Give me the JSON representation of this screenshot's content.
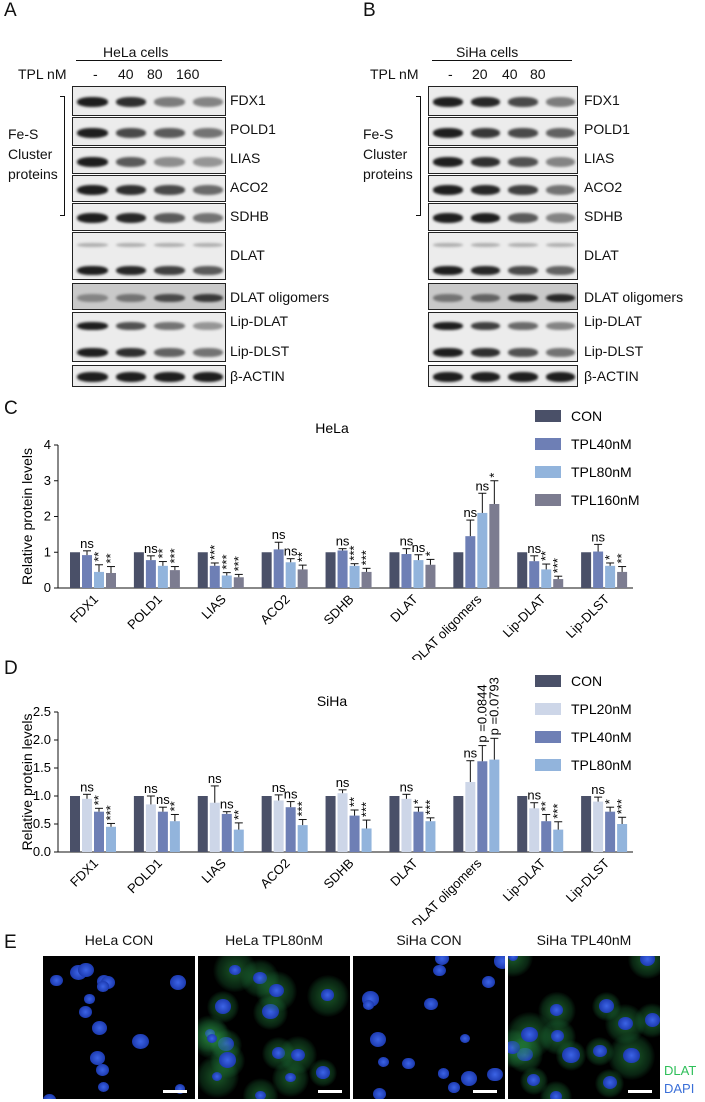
{
  "panelA": {
    "letter": "A",
    "cell_header": "HeLa cells",
    "tpl_label": "TPL nM",
    "doses": [
      "-",
      "40",
      "80",
      "160"
    ],
    "bracket_label": [
      "Fe-S",
      "Cluster",
      "proteins"
    ],
    "blots": [
      {
        "name": "FDX1",
        "levels": [
          1.0,
          0.9,
          0.45,
          0.4
        ]
      },
      {
        "name": "POLD1",
        "levels": [
          1.0,
          0.75,
          0.65,
          0.5
        ]
      },
      {
        "name": "LIAS",
        "levels": [
          1.0,
          0.65,
          0.35,
          0.3
        ]
      },
      {
        "name": "ACO2",
        "levels": [
          1.0,
          0.9,
          0.75,
          0.55
        ]
      },
      {
        "name": "SDHB",
        "levels": [
          1.0,
          0.95,
          0.65,
          0.5
        ]
      },
      {
        "name": "DLAT",
        "levels": [
          1.0,
          0.95,
          0.8,
          0.65
        ]
      },
      {
        "name": "DLAT oligomers",
        "levels": [
          0.4,
          0.5,
          0.75,
          0.85
        ]
      },
      {
        "name": "Lip-DLAT",
        "levels": [
          1.0,
          0.7,
          0.5,
          0.3
        ]
      },
      {
        "name": "Lip-DLST",
        "levels": [
          1.0,
          0.9,
          0.6,
          0.5
        ]
      },
      {
        "name": "β-ACTIN",
        "levels": [
          1.0,
          1.0,
          1.0,
          1.0
        ]
      }
    ]
  },
  "panelB": {
    "letter": "B",
    "cell_header": "SiHa cells",
    "tpl_label": "TPL nM",
    "doses": [
      "-",
      "20",
      "40",
      "80"
    ],
    "bracket_label": [
      "Fe-S",
      "Cluster",
      "proteins"
    ],
    "blots": [
      {
        "name": "FDX1",
        "levels": [
          1.0,
          0.95,
          0.75,
          0.45
        ]
      },
      {
        "name": "POLD1",
        "levels": [
          1.0,
          0.85,
          0.75,
          0.6
        ]
      },
      {
        "name": "LIAS",
        "levels": [
          1.0,
          0.9,
          0.7,
          0.4
        ]
      },
      {
        "name": "ACO2",
        "levels": [
          1.0,
          0.95,
          0.8,
          0.5
        ]
      },
      {
        "name": "SDHB",
        "levels": [
          1.0,
          1.0,
          0.65,
          0.4
        ]
      },
      {
        "name": "DLAT",
        "levels": [
          1.0,
          0.95,
          0.75,
          0.6
        ]
      },
      {
        "name": "DLAT oligomers",
        "levels": [
          0.5,
          0.6,
          0.9,
          0.95
        ]
      },
      {
        "name": "Lip-DLAT",
        "levels": [
          1.0,
          0.8,
          0.55,
          0.4
        ]
      },
      {
        "name": "Lip-DLST",
        "levels": [
          1.0,
          0.9,
          0.7,
          0.5
        ]
      },
      {
        "name": "β-ACTIN",
        "levels": [
          1.0,
          1.0,
          1.0,
          1.0
        ]
      }
    ]
  },
  "chart_data": [
    {
      "type": "bar",
      "letter": "C",
      "title": "HeLa",
      "ylabel": "Relative protein levels",
      "ylim": [
        0,
        4
      ],
      "yticks": [
        "0",
        "1",
        "2",
        "3",
        "4"
      ],
      "categories": [
        "FDX1",
        "POLD1",
        "LIAS",
        "ACO2",
        "SDHB",
        "DLAT",
        "DLAT oligomers",
        "Lip-DLAT",
        "Lip-DLST"
      ],
      "series": [
        {
          "name": "CON",
          "color": "#4a5068",
          "values": [
            1,
            1,
            1,
            1,
            1,
            1,
            1,
            1,
            1
          ],
          "errors": [
            0,
            0,
            0,
            0,
            0,
            0,
            0,
            0,
            0
          ],
          "sig": [
            "",
            "",
            "",
            "",
            "",
            "",
            "",
            "",
            ""
          ]
        },
        {
          "name": "TPL40nM",
          "color": "#6e7fb5",
          "values": [
            0.92,
            0.78,
            0.62,
            1.08,
            1.05,
            0.95,
            1.45,
            0.75,
            1.02
          ],
          "errors": [
            0.12,
            0.12,
            0.08,
            0.2,
            0.05,
            0.15,
            0.45,
            0.15,
            0.2
          ],
          "sig": [
            "ns",
            "ns",
            "***",
            "ns",
            "ns",
            "ns",
            "ns",
            "ns",
            "ns"
          ]
        },
        {
          "name": "TPL80nM",
          "color": "#92b4dc",
          "values": [
            0.45,
            0.62,
            0.35,
            0.72,
            0.62,
            0.78,
            2.1,
            0.52,
            0.62
          ],
          "errors": [
            0.2,
            0.12,
            0.08,
            0.1,
            0.06,
            0.15,
            0.55,
            0.15,
            0.08
          ],
          "sig": [
            "**",
            "**",
            "***",
            "ns",
            "***",
            "ns",
            "ns",
            "**",
            "*"
          ]
        },
        {
          "name": "TPL160nM",
          "color": "#7c7c90",
          "values": [
            0.42,
            0.5,
            0.3,
            0.52,
            0.45,
            0.65,
            2.35,
            0.25,
            0.45
          ],
          "errors": [
            0.18,
            0.1,
            0.08,
            0.12,
            0.1,
            0.15,
            0.65,
            0.08,
            0.15
          ],
          "sig": [
            "**",
            "***",
            "***",
            "**",
            "***",
            "*",
            "*",
            "***",
            "**"
          ]
        }
      ]
    },
    {
      "type": "bar",
      "letter": "D",
      "title": "SiHa",
      "ylabel": "Relative protein levels",
      "ylim": [
        0,
        2.5
      ],
      "yticks": [
        "0.0",
        "0.5",
        "1.0",
        "1.5",
        "2.0",
        "2.5"
      ],
      "categories": [
        "FDX1",
        "POLD1",
        "LIAS",
        "ACO2",
        "SDHB",
        "DLAT",
        "DLAT oligomers",
        "Lip-DLAT",
        "Lip-DLST"
      ],
      "series": [
        {
          "name": "CON",
          "color": "#4a5068",
          "values": [
            1,
            1,
            1,
            1,
            1,
            1,
            1,
            1,
            1
          ],
          "errors": [
            0,
            0,
            0,
            0,
            0,
            0,
            0,
            0,
            0
          ],
          "sig": [
            "",
            "",
            "",
            "",
            "",
            "",
            "",
            "",
            ""
          ]
        },
        {
          "name": "TPL20nM",
          "color": "#cdd6e8",
          "values": [
            0.95,
            0.85,
            0.88,
            0.92,
            1.05,
            0.95,
            1.25,
            0.78,
            0.9
          ],
          "errors": [
            0.08,
            0.15,
            0.3,
            0.1,
            0.06,
            0.08,
            0.38,
            0.1,
            0.08
          ],
          "sig": [
            "ns",
            "ns",
            "ns",
            "ns",
            "ns",
            "ns",
            "ns",
            "ns",
            "ns"
          ]
        },
        {
          "name": "TPL40nM",
          "color": "#6e7fb5",
          "values": [
            0.72,
            0.72,
            0.68,
            0.8,
            0.65,
            0.72,
            1.62,
            0.55,
            0.72
          ],
          "errors": [
            0.06,
            0.08,
            0.04,
            0.1,
            0.1,
            0.08,
            0.28,
            0.12,
            0.08
          ],
          "sig": [
            "**",
            "ns",
            "ns",
            "ns",
            "**",
            "*",
            "p =0.0844",
            "**",
            "*"
          ]
        },
        {
          "name": "TPL80nM",
          "color": "#92b4dc",
          "values": [
            0.45,
            0.55,
            0.4,
            0.48,
            0.42,
            0.55,
            1.65,
            0.4,
            0.5
          ],
          "errors": [
            0.06,
            0.12,
            0.12,
            0.1,
            0.15,
            0.06,
            0.38,
            0.14,
            0.12
          ],
          "sig": [
            "***",
            "**",
            "**",
            "***",
            "***",
            "***",
            "p =0.0793",
            "***",
            "***"
          ]
        }
      ]
    }
  ],
  "panelE": {
    "letter": "E",
    "titles": [
      "HeLa CON",
      "HeLa TPL80nM",
      "SiHa CON",
      "SiHa TPL40nM"
    ],
    "green_signal": [
      0.1,
      0.8,
      0.1,
      0.85
    ],
    "legend": [
      {
        "label": "DLAT",
        "color": "#2fbf5a"
      },
      {
        "label": "DAPI",
        "color": "#3a6fd8"
      }
    ]
  }
}
